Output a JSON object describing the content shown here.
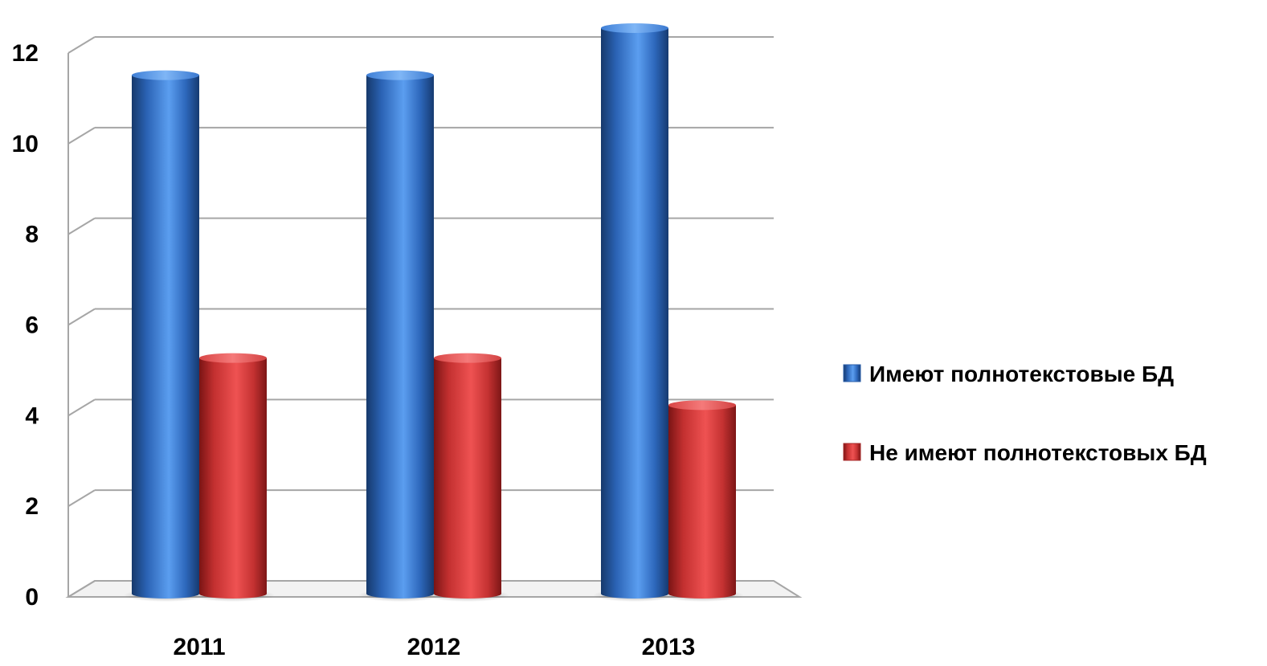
{
  "chart_data": {
    "type": "bar",
    "style": "3d-cylinder",
    "title": "",
    "xlabel": "",
    "ylabel": "",
    "categories": [
      "2011",
      "2012",
      "2013"
    ],
    "series": [
      {
        "name": "Имеют полнотекстовые БД",
        "values": [
          11,
          11,
          12
        ],
        "color": "#2F6FC6"
      },
      {
        "name": "Не имеют полнотекстовых БД",
        "values": [
          5,
          5,
          4
        ],
        "color": "#D93B3B"
      }
    ],
    "ylim": [
      0,
      12
    ],
    "yticks": [
      "0",
      "2",
      "4",
      "6",
      "8",
      "10",
      "12"
    ],
    "grid": true,
    "legend_position": "right"
  }
}
